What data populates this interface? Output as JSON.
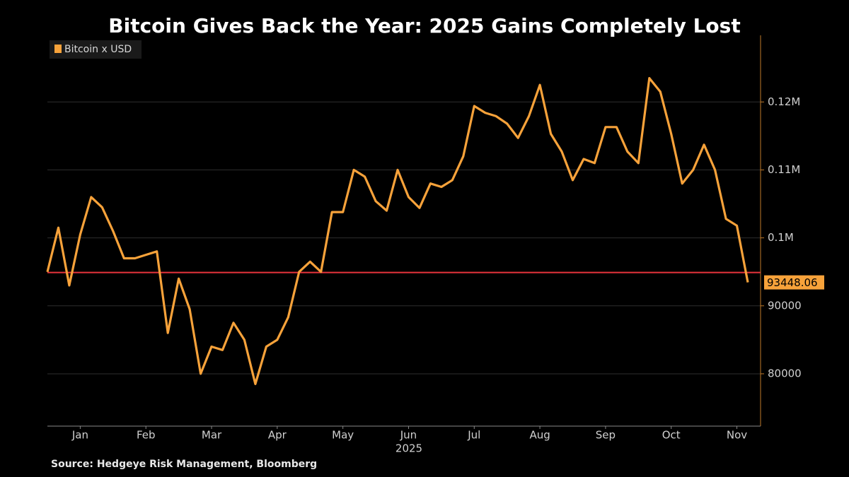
{
  "chart_data": {
    "type": "line",
    "title": "Bitcoin Gives Back the Year: 2025 Gains Completely Lost",
    "source": "Source: Hedgeye Risk Management, Bloomberg",
    "xlabel": "2025",
    "categories": [
      null,
      null,
      null,
      "Jan",
      null,
      null,
      null,
      null,
      null,
      "Feb",
      null,
      null,
      null,
      null,
      null,
      "Mar",
      null,
      null,
      null,
      null,
      null,
      "Apr",
      null,
      null,
      null,
      null,
      null,
      "May",
      null,
      null,
      null,
      null,
      null,
      "Jun",
      null,
      null,
      null,
      null,
      null,
      "Jul",
      null,
      null,
      null,
      null,
      null,
      "Aug",
      null,
      null,
      null,
      null,
      null,
      "Sep",
      null,
      null,
      null,
      null,
      null,
      "Oct",
      null,
      null,
      null,
      null,
      null,
      "Nov",
      null
    ],
    "series": [
      {
        "name": "Bitcoin x USD",
        "color": "#f7a23a",
        "values": [
          95000,
          101500,
          93000,
          100500,
          106000,
          104500,
          101000,
          97000,
          97000,
          97500,
          98000,
          86000,
          94000,
          89500,
          80000,
          84000,
          83500,
          87500,
          85000,
          78500,
          84000,
          85000,
          88300,
          95000,
          96500,
          95000,
          103800,
          103800,
          110000,
          109000,
          105400,
          104000,
          110000,
          106000,
          104400,
          108000,
          107500,
          108500,
          112000,
          119400,
          118400,
          117900,
          116800,
          114700,
          117900,
          122500,
          115300,
          112700,
          108500,
          111600,
          111000,
          116300,
          116300,
          112700,
          111000,
          123500,
          121500,
          115300,
          108000,
          110000,
          113700,
          110000,
          102800,
          101800,
          93448.06
        ]
      }
    ],
    "reference_line": {
      "value": 94900,
      "color": "#e8343c"
    },
    "ylim": [
      72300,
      129800
    ],
    "yticks": [
      80000,
      90000,
      {
        "value": 100000,
        "label": "0.1M"
      },
      {
        "value": 110000,
        "label": "0.11M"
      },
      {
        "value": 120000,
        "label": "0.12M"
      }
    ],
    "grid": true,
    "legend": "top-left"
  }
}
